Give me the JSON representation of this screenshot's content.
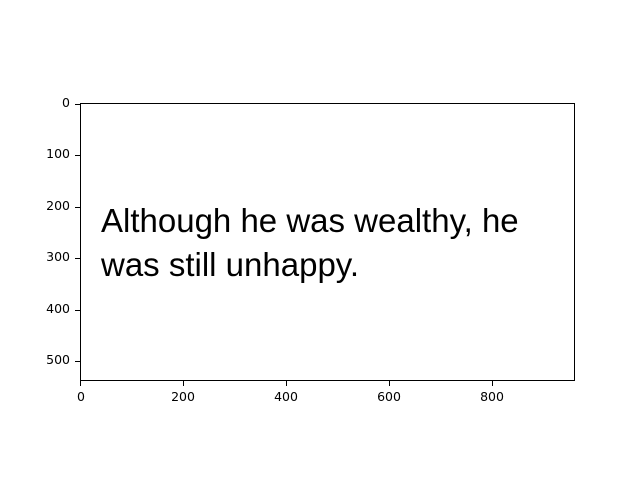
{
  "image_text": {
    "lines": [
      "Although he was wealthy, he",
      "was still unhappy."
    ]
  },
  "axes": {
    "x_ticks": [
      "0",
      "200",
      "400",
      "600",
      "800"
    ],
    "y_ticks": [
      "0",
      "100",
      "200",
      "300",
      "400",
      "500"
    ]
  }
}
